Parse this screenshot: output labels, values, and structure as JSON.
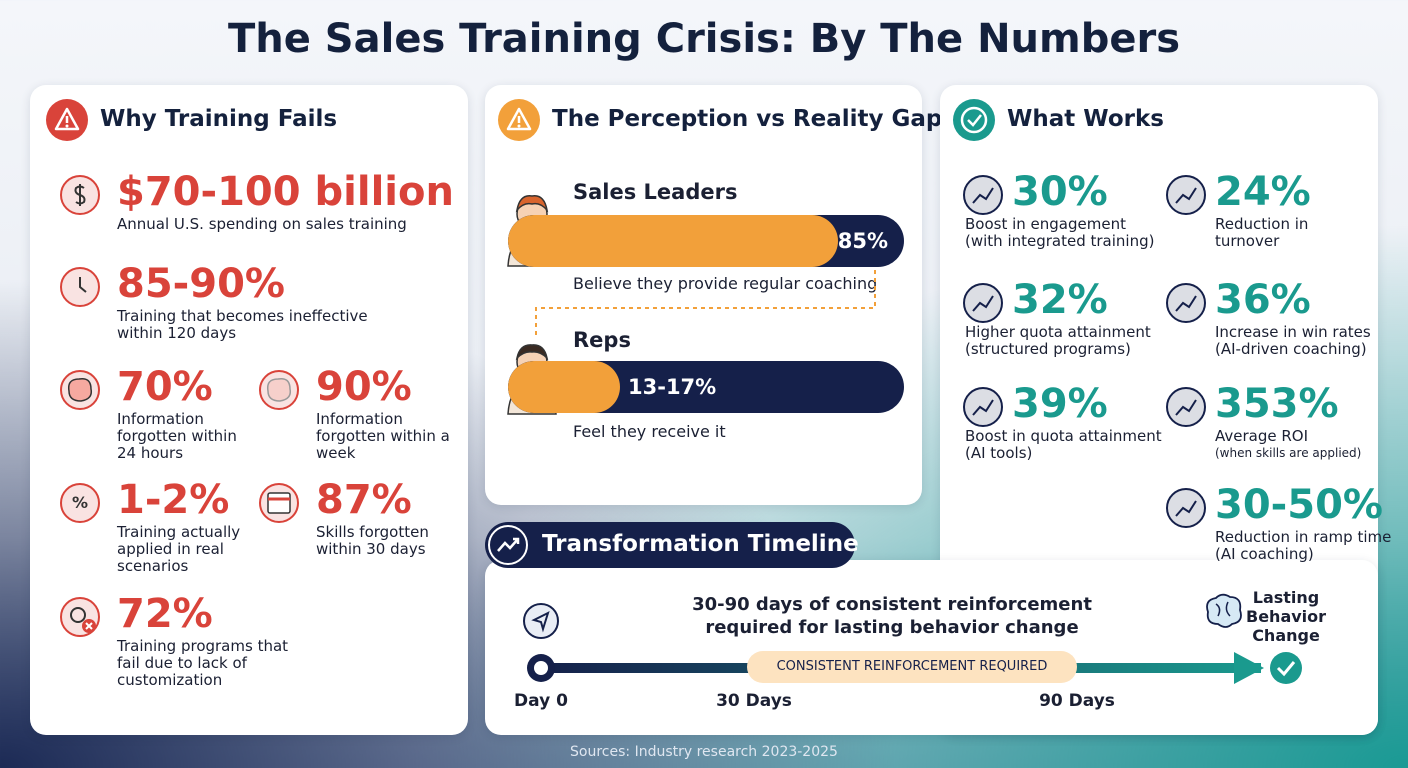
{
  "title": "The Sales Training Crisis: By The Numbers",
  "why_training_fails": {
    "heading": "Why Training Fails",
    "stats": [
      {
        "value": "$70-100 billion",
        "label": "Annual U.S. spending on sales training"
      },
      {
        "value": "85-90%",
        "label": "Training that becomes ineffective within 120 days"
      },
      {
        "value": "70%",
        "label": "Information forgotten within 24 hours"
      },
      {
        "value": "90%",
        "label": "Information forgotten within a week"
      },
      {
        "value": "1-2%",
        "label": "Training actually applied in real scenarios"
      },
      {
        "value": "87%",
        "label": "Skills forgotten within 30 days"
      },
      {
        "value": "72%",
        "label": "Training programs that fail due to lack of customization"
      }
    ]
  },
  "perception_gap": {
    "heading": "The Perception vs Reality Gap",
    "groups": [
      {
        "name": "Sales Leaders",
        "value": "85%",
        "caption": "Believe they provide regular coaching"
      },
      {
        "name": "Reps",
        "value": "13-17%",
        "caption": "Feel they receive it"
      }
    ]
  },
  "what_works": {
    "heading": "What Works",
    "stats": [
      {
        "value": "30%",
        "label": "Boost in engagement",
        "note": "(with integrated training)"
      },
      {
        "value": "24%",
        "label": "Reduction in turnover"
      },
      {
        "value": "32%",
        "label": "Higher quota attainment",
        "note": "(structured programs)"
      },
      {
        "value": "36%",
        "label": "Increase in win rates",
        "note": "(AI-driven coaching)"
      },
      {
        "value": "39%",
        "label": "Boost in quota attainment (AI tools)"
      },
      {
        "value": "353%",
        "label": "Average ROI",
        "note": "(when skills are applied)"
      },
      {
        "value": "30-50%",
        "label": "Reduction in ramp time",
        "note": "(AI coaching)"
      }
    ]
  },
  "timeline": {
    "heading": "Transformation Timeline",
    "message": "30-90 days of consistent reinforcement required for lasting behavior change",
    "band": "CONSISTENT REINFORCEMENT REQUIRED",
    "milestones": [
      "Day 0",
      "30 Days",
      "90 Days"
    ],
    "end": "Lasting Behavior Change"
  },
  "sources": "Sources: Industry research 2023-2025"
}
